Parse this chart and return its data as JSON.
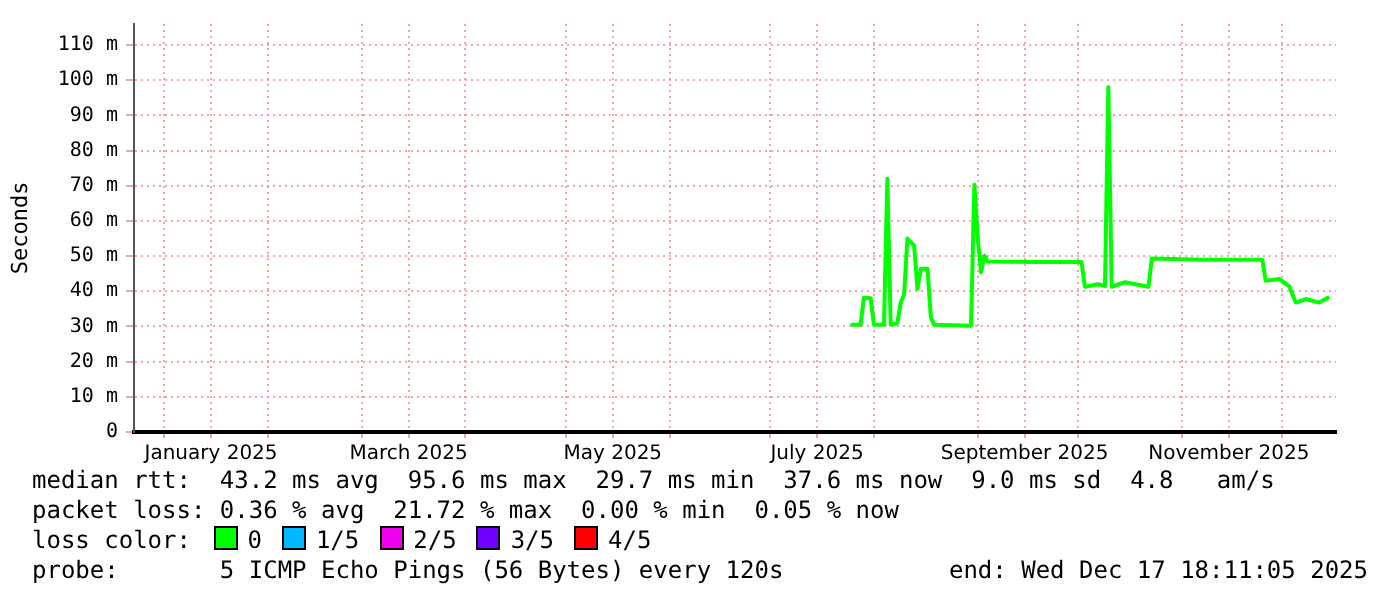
{
  "chart_data": {
    "type": "line",
    "ylabel": "Seconds",
    "legend_title": "loss color:",
    "legend": "bottom",
    "grid": true,
    "marker": "none",
    "xlim": [
      "2024-12-23",
      "2025-12-17"
    ],
    "xticks": [
      {
        "value": "2025-01-01",
        "label": null
      },
      {
        "value": "2025-01-15",
        "label": "January 2025"
      },
      {
        "value": "2025-02-01",
        "label": null
      },
      {
        "value": "2025-03-01",
        "label": null
      },
      {
        "value": "2025-03-15",
        "label": "March 2025"
      },
      {
        "value": "2025-04-01",
        "label": null
      },
      {
        "value": "2025-05-01",
        "label": null
      },
      {
        "value": "2025-05-15",
        "label": "May 2025"
      },
      {
        "value": "2025-06-01",
        "label": null
      },
      {
        "value": "2025-07-01",
        "label": null
      },
      {
        "value": "2025-07-15",
        "label": "July 2025"
      },
      {
        "value": "2025-08-01",
        "label": null
      },
      {
        "value": "2025-09-01",
        "label": null
      },
      {
        "value": "2025-09-15",
        "label": "September 2025"
      },
      {
        "value": "2025-10-01",
        "label": null
      },
      {
        "value": "2025-11-01",
        "label": null
      },
      {
        "value": "2025-11-15",
        "label": "November 2025"
      },
      {
        "value": "2025-12-01",
        "label": null
      }
    ],
    "ylim": [
      0,
      116
    ],
    "yticks": [
      0,
      {
        "value": 10,
        "label": "10 m"
      },
      {
        "value": 20,
        "label": "20 m"
      },
      {
        "value": 30,
        "label": "30 m"
      },
      {
        "value": 40,
        "label": "40 m"
      },
      {
        "value": 50,
        "label": "50 m"
      },
      {
        "value": 60,
        "label": "60 m"
      },
      {
        "value": 70,
        "label": "70 m"
      },
      {
        "value": 80,
        "label": "80 m"
      },
      {
        "value": 90,
        "label": "90 m"
      },
      {
        "value": 100,
        "label": "100 m"
      },
      {
        "value": 110,
        "label": "110 m"
      }
    ],
    "x": [
      "2025-07-25",
      "2025-07-28",
      "2025-07-29",
      "2025-07-31",
      "2025-08-01",
      "2025-08-04",
      "2025-08-05",
      "2025-08-06",
      "2025-08-08",
      "2025-08-09",
      "2025-08-10",
      "2025-08-11",
      "2025-08-12",
      "2025-08-13",
      "2025-08-14",
      "2025-08-15",
      "2025-08-17",
      "2025-08-18",
      "2025-08-19",
      "2025-08-30",
      "2025-08-31",
      "2025-09-01",
      "2025-09-02",
      "2025-09-03",
      "2025-09-04",
      "2025-09-18",
      "2025-10-02",
      "2025-10-03",
      "2025-10-07",
      "2025-10-09",
      "2025-10-10",
      "2025-10-11",
      "2025-10-15",
      "2025-10-22",
      "2025-10-23",
      "2025-11-07",
      "2025-11-25",
      "2025-11-26",
      "2025-11-30",
      "2025-12-03",
      "2025-12-05",
      "2025-12-08",
      "2025-12-12",
      "2025-12-15"
    ],
    "series": [
      {
        "name": "0",
        "color": "#00ff00",
        "values": [
          30.5,
          30.5,
          38.2,
          38,
          30.5,
          30.5,
          72,
          30.5,
          31,
          36.8,
          39,
          55,
          54,
          53,
          40.7,
          46.4,
          46.4,
          32.5,
          30.5,
          30.2,
          70.3,
          55,
          45.4,
          50.1,
          48.5,
          48.3,
          48.3,
          41.3,
          42,
          41.5,
          98,
          41.3,
          42.6,
          41.3,
          49.3,
          49,
          49,
          43,
          43.5,
          41.5,
          36.8,
          37.8,
          36.8,
          38.4
        ]
      },
      {
        "name": "1/5",
        "color": "#00b8ff",
        "values": [
          null,
          null,
          null,
          null,
          null,
          null,
          null,
          null,
          null,
          null,
          null,
          null,
          null,
          null,
          null,
          null,
          null,
          null,
          null,
          null,
          null,
          null,
          null,
          null,
          null,
          null,
          null,
          null,
          null,
          null,
          null,
          null,
          null,
          null,
          null,
          null,
          null,
          null,
          null,
          null,
          null,
          null,
          null,
          null
        ]
      },
      {
        "name": "2/5",
        "color": "#ee00ee",
        "values": [
          null,
          null,
          null,
          null,
          null,
          null,
          null,
          null,
          null,
          null,
          null,
          null,
          null,
          null,
          null,
          null,
          null,
          null,
          null,
          null,
          null,
          null,
          null,
          null,
          null,
          null,
          null,
          null,
          null,
          null,
          null,
          null,
          null,
          null,
          null,
          null,
          null,
          null,
          null,
          null,
          null,
          null,
          null,
          null
        ]
      },
      {
        "name": "3/5",
        "color": "#7000ff",
        "values": [
          null,
          null,
          null,
          null,
          null,
          null,
          null,
          null,
          null,
          null,
          null,
          null,
          null,
          null,
          null,
          null,
          null,
          null,
          null,
          null,
          null,
          null,
          null,
          null,
          null,
          null,
          null,
          null,
          null,
          null,
          null,
          null,
          null,
          null,
          null,
          null,
          null,
          null,
          null,
          null,
          null,
          null,
          null,
          null
        ]
      },
      {
        "name": "4/5",
        "color": "#ff0000",
        "values": [
          null,
          null,
          null,
          null,
          null,
          null,
          null,
          null,
          null,
          null,
          null,
          null,
          null,
          null,
          null,
          null,
          null,
          null,
          null,
          null,
          null,
          null,
          null,
          null,
          null,
          null,
          null,
          null,
          null,
          null,
          null,
          null,
          null,
          null,
          null,
          null,
          null,
          null,
          null,
          null,
          null,
          null,
          null,
          null
        ]
      }
    ],
    "annotations": [
      "median rtt:  43.2 ms avg  95.6 ms max  29.7 ms min  37.6 ms now  9.0 ms sd  4.8   am/s",
      "packet loss: 0.36 % avg  21.72 % max  0.00 % min  0.05 % now",
      "probe:       5 ICMP Echo Pings (56 Bytes) every 120s",
      "end: Wed Dec 17 18:11:05 2025"
    ]
  }
}
